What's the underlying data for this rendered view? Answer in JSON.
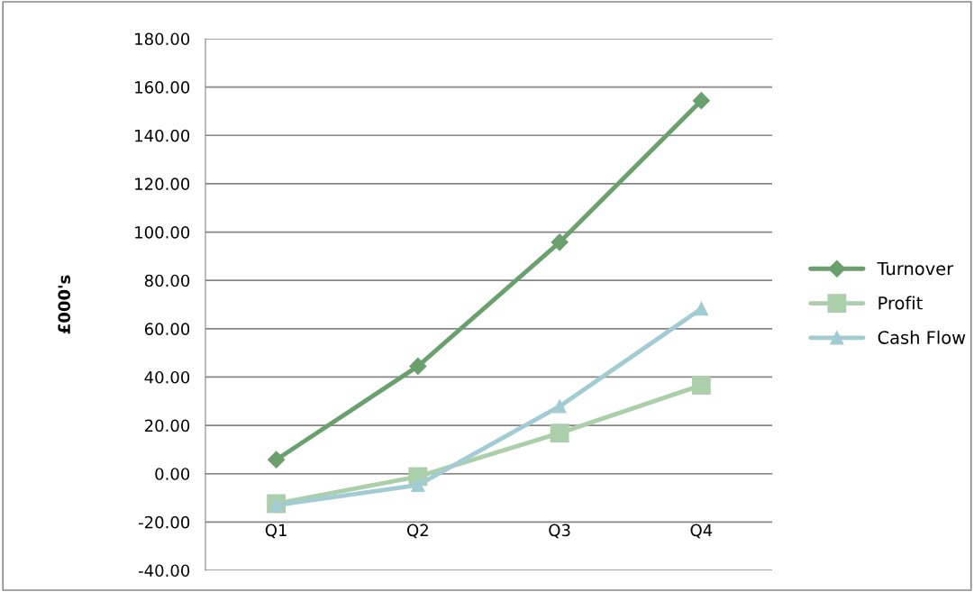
{
  "chart_data": {
    "type": "line",
    "ylabel": "£000's",
    "categories": [
      "Q1",
      "Q2",
      "Q3",
      "Q4"
    ],
    "series": [
      {
        "name": "Turnover",
        "color": "#6aa06e",
        "marker": "diamond",
        "values": [
          5.8,
          44.5,
          95.8,
          154.4
        ]
      },
      {
        "name": "Profit",
        "color": "#abcfab",
        "marker": "square",
        "values": [
          -12.4,
          -1.2,
          16.8,
          36.6
        ]
      },
      {
        "name": "Cash Flow",
        "color": "#a3cbd3",
        "marker": "triangle",
        "values": [
          -13.0,
          -4.7,
          27.9,
          68.3
        ]
      }
    ],
    "ylim": [
      -40,
      180
    ],
    "yticks": [
      {
        "value": -40,
        "label": "-40.00"
      },
      {
        "value": -20,
        "label": "-20.00"
      },
      {
        "value": 0,
        "label": "0.00"
      },
      {
        "value": 20,
        "label": "20.00"
      },
      {
        "value": 40,
        "label": "40.00"
      },
      {
        "value": 60,
        "label": "60.00"
      },
      {
        "value": 80,
        "label": "80.00"
      },
      {
        "value": 100,
        "label": "100.00"
      },
      {
        "value": 120,
        "label": "120.00"
      },
      {
        "value": 140,
        "label": "140.00"
      },
      {
        "value": 160,
        "label": "160.00"
      },
      {
        "value": 180,
        "label": "180.00"
      }
    ],
    "grid": "y",
    "legend": "right",
    "line_style": "solid"
  }
}
